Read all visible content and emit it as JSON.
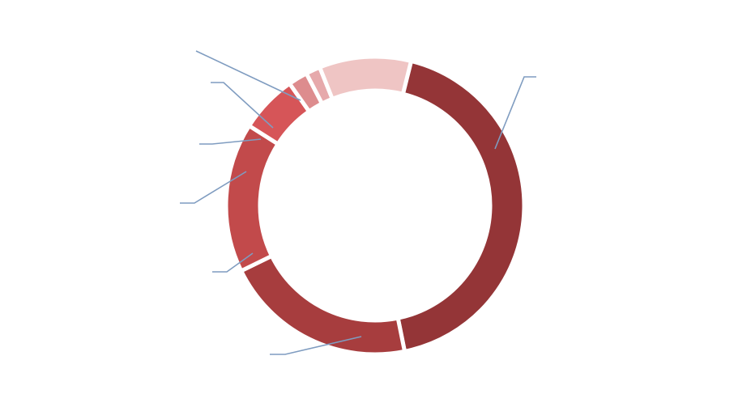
{
  "chart_data": {
    "type": "pie",
    "variant": "donut",
    "title": "",
    "legend": "none",
    "slices": [
      {
        "value": 41.0,
        "color": "#943537"
      },
      {
        "value": 20.0,
        "color": "#a73d3e"
      },
      {
        "value": 15.5,
        "color": "#c24a4b"
      },
      {
        "value": 6.0,
        "color": "#d65558"
      },
      {
        "value": 2.0,
        "color": "#dd8c8e"
      },
      {
        "value": 1.5,
        "color": "#e6a9ab"
      },
      {
        "value": 9.5,
        "color": "#efc5c4"
      }
    ],
    "leader_line_color": "#7f9cc0",
    "gap_color": "#ffffff"
  }
}
